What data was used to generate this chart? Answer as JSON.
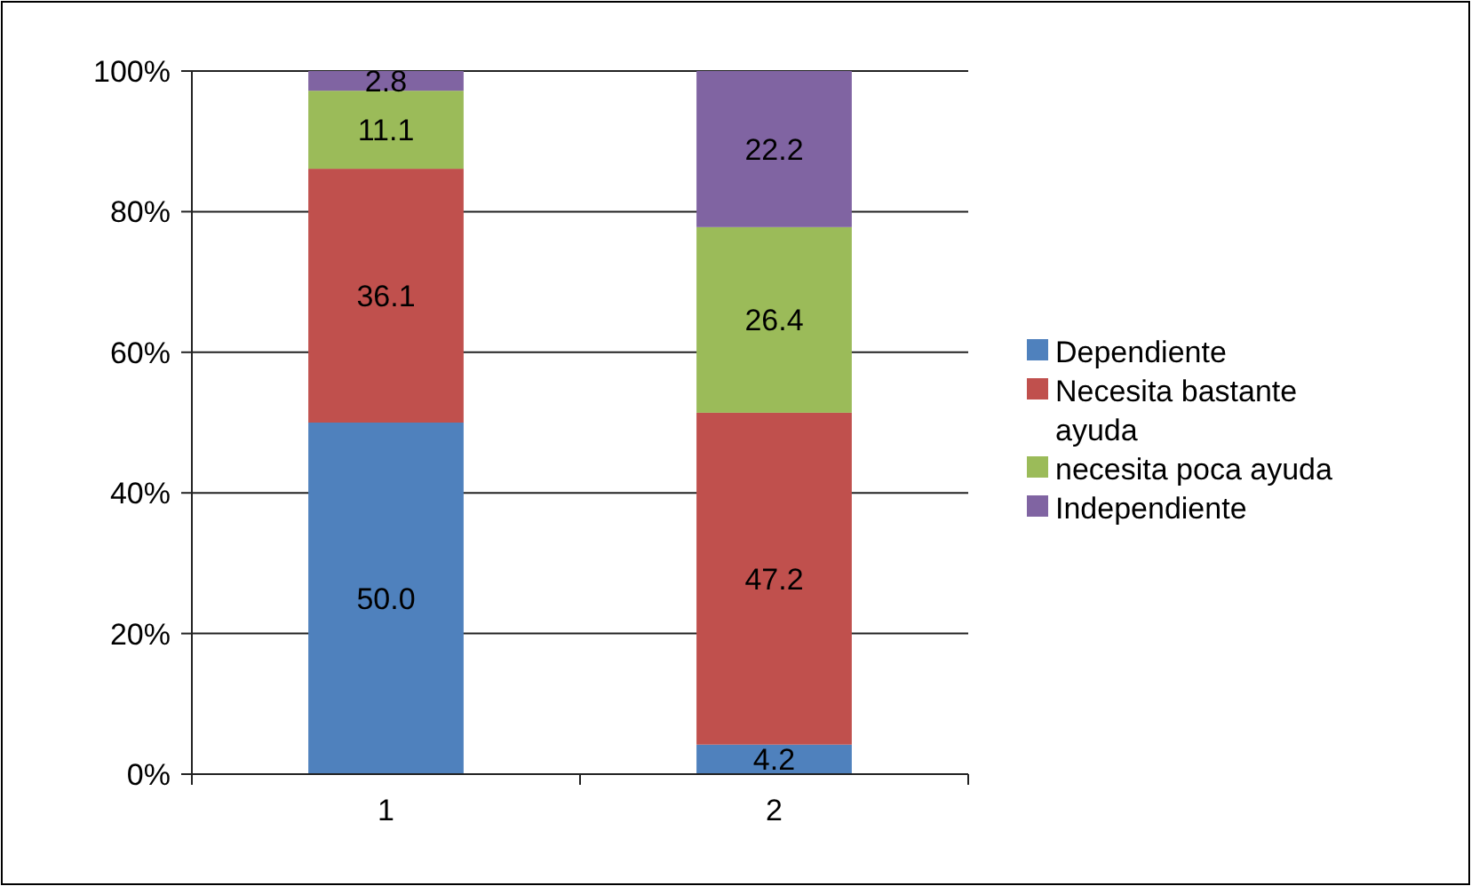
{
  "chart_data": {
    "type": "bar",
    "stacked": true,
    "categories": [
      "1",
      "2"
    ],
    "series": [
      {
        "name": "Dependiente",
        "color": "#4f81bd",
        "values": [
          50.0,
          4.2
        ],
        "value_labels": [
          "50.0",
          "4.2"
        ]
      },
      {
        "name": "Necesita bastante ayuda",
        "color": "#c0504d",
        "values": [
          36.1,
          47.2
        ],
        "value_labels": [
          "36.1",
          "47.2"
        ]
      },
      {
        "name": "necesita poca ayuda",
        "color": "#9bbb59",
        "values": [
          11.1,
          26.4
        ],
        "value_labels": [
          "11.1",
          "26.4"
        ]
      },
      {
        "name": "Independiente",
        "color": "#8064a2",
        "values": [
          2.8,
          22.2
        ],
        "value_labels": [
          "2.8",
          "22.2"
        ]
      }
    ],
    "ylim": [
      0,
      100
    ],
    "yticks": [
      {
        "value": 0,
        "label": "0%"
      },
      {
        "value": 20,
        "label": "20%"
      },
      {
        "value": 40,
        "label": "40%"
      },
      {
        "value": 60,
        "label": "60%"
      },
      {
        "value": 80,
        "label": "80%"
      },
      {
        "value": 100,
        "label": "100%"
      }
    ],
    "grid": "y",
    "legend": "right"
  }
}
